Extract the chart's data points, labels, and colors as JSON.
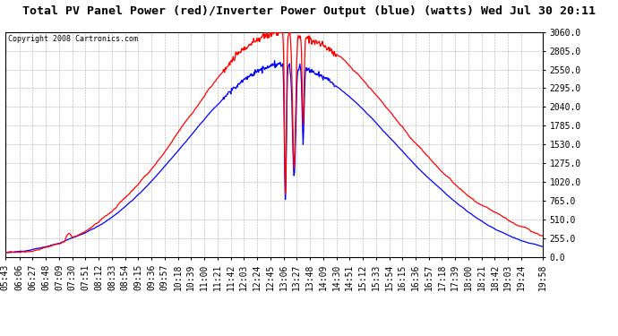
{
  "title": "Total PV Panel Power (red)/Inverter Power Output (blue) (watts) Wed Jul 30 20:11",
  "copyright": "Copyright 2008 Cartronics.com",
  "ylabel_right_ticks": [
    0.0,
    255.0,
    510.0,
    765.0,
    1020.0,
    1275.0,
    1530.0,
    1785.0,
    2040.0,
    2295.0,
    2550.0,
    2805.0,
    3060.0
  ],
  "ymax": 3060.0,
  "ymin": 0.0,
  "bg_color": "#ffffff",
  "plot_bg_color": "#ffffff",
  "grid_color": "#aaaaaa",
  "title_fontsize": 9.5,
  "tick_fontsize": 7,
  "x_labels": [
    "05:43",
    "06:06",
    "06:27",
    "06:48",
    "07:09",
    "07:30",
    "07:51",
    "08:12",
    "08:33",
    "08:54",
    "09:15",
    "09:36",
    "09:57",
    "10:18",
    "10:39",
    "11:00",
    "11:21",
    "11:42",
    "12:03",
    "12:24",
    "12:45",
    "13:06",
    "13:27",
    "13:48",
    "14:09",
    "14:30",
    "14:51",
    "15:12",
    "15:33",
    "15:54",
    "16:15",
    "16:36",
    "16:57",
    "17:18",
    "17:39",
    "18:00",
    "18:21",
    "18:42",
    "19:03",
    "19:24",
    "19:58"
  ]
}
